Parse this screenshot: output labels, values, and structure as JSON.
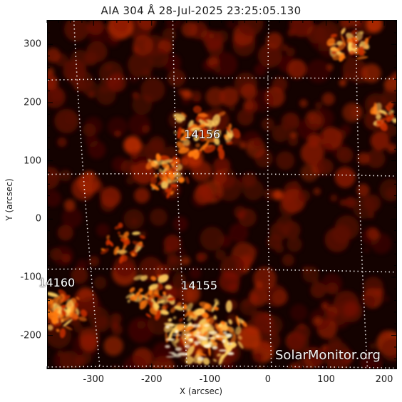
{
  "title": "AIA 304 Å 28-Jul-2025 23:25:05.130",
  "xaxis": {
    "label": "X (arcsec)",
    "ticks": [
      "-300",
      "-200",
      "-100",
      "0",
      "100",
      "200"
    ],
    "tick_values": [
      -300,
      -200,
      -100,
      0,
      100,
      200
    ],
    "range": [
      -380,
      222
    ]
  },
  "yaxis": {
    "label": "Y (arcsec)",
    "ticks": [
      "300",
      "200",
      "100",
      "0",
      "-100",
      "-200"
    ],
    "tick_values": [
      300,
      200,
      100,
      0,
      -100,
      -200
    ],
    "range": [
      -258,
      342
    ]
  },
  "regions": [
    {
      "label": "14156",
      "x": -110,
      "y": 145
    },
    {
      "label": "14160",
      "x": -360,
      "y": -110
    },
    {
      "label": "14155",
      "x": -115,
      "y": -115
    }
  ],
  "watermark": "SolarMonitor.org",
  "colors": {
    "background": "#140200",
    "grid": "#ffffff",
    "hot": "#ffd060",
    "warm": "#c83000",
    "cool": "#5a0c00"
  }
}
